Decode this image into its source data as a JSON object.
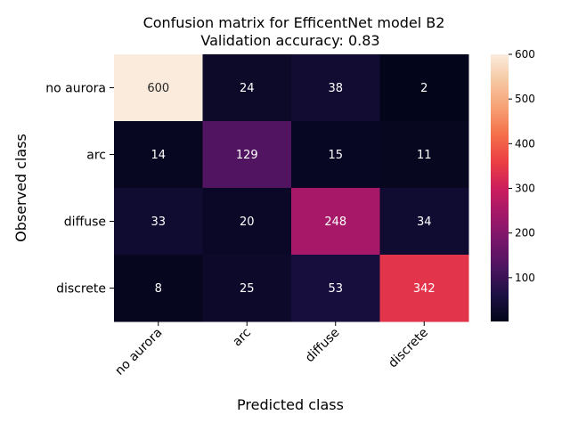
{
  "chart_data": {
    "type": "heatmap",
    "title": "Confusion matrix for EfficentNet model B2",
    "subtitle": "Validation accuracy: 0.83",
    "xlabel": "Predicted class",
    "ylabel": "Observed class",
    "x_categories": [
      "no aurora",
      "arc",
      "diffuse",
      "discrete"
    ],
    "y_categories": [
      "no aurora",
      "arc",
      "diffuse",
      "discrete"
    ],
    "values": [
      [
        600,
        24,
        38,
        2
      ],
      [
        14,
        129,
        15,
        11
      ],
      [
        33,
        20,
        248,
        34
      ],
      [
        8,
        25,
        53,
        342
      ]
    ],
    "colorbar": {
      "min": 2,
      "max": 600,
      "ticks": [
        100,
        200,
        300,
        400,
        500,
        600
      ],
      "colormap": "rocket"
    },
    "grid": false,
    "legend": "colorbar-right"
  }
}
